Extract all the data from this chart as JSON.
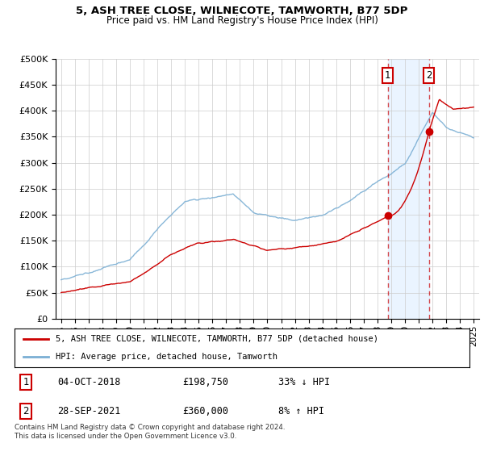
{
  "title1": "5, ASH TREE CLOSE, WILNECOTE, TAMWORTH, B77 5DP",
  "title2": "Price paid vs. HM Land Registry's House Price Index (HPI)",
  "ylabel_ticks": [
    "£0",
    "£50K",
    "£100K",
    "£150K",
    "£200K",
    "£250K",
    "£300K",
    "£350K",
    "£400K",
    "£450K",
    "£500K"
  ],
  "ytick_values": [
    0,
    50000,
    100000,
    150000,
    200000,
    250000,
    300000,
    350000,
    400000,
    450000,
    500000
  ],
  "ylim": [
    0,
    500000
  ],
  "hpi_color": "#7bafd4",
  "price_color": "#cc0000",
  "vline_color": "#cc0000",
  "shade_color": "#ddeeff",
  "transaction1": {
    "year": 2018.75,
    "price": 198750,
    "label": "1"
  },
  "transaction2": {
    "year": 2021.75,
    "price": 360000,
    "label": "2"
  },
  "legend_entries": [
    "5, ASH TREE CLOSE, WILNECOTE, TAMWORTH, B77 5DP (detached house)",
    "HPI: Average price, detached house, Tamworth"
  ],
  "table_rows": [
    {
      "num": "1",
      "date": "04-OCT-2018",
      "price": "£198,750",
      "change": "33% ↓ HPI"
    },
    {
      "num": "2",
      "date": "28-SEP-2021",
      "price": "£360,000",
      "change": "8% ↑ HPI"
    }
  ],
  "footnote": "Contains HM Land Registry data © Crown copyright and database right 2024.\nThis data is licensed under the Open Government Licence v3.0.",
  "xticks": [
    1995,
    1996,
    1997,
    1998,
    1999,
    2000,
    2001,
    2002,
    2003,
    2004,
    2005,
    2006,
    2007,
    2008,
    2009,
    2010,
    2011,
    2012,
    2013,
    2014,
    2015,
    2016,
    2017,
    2018,
    2019,
    2020,
    2021,
    2022,
    2023,
    2024,
    2025
  ]
}
